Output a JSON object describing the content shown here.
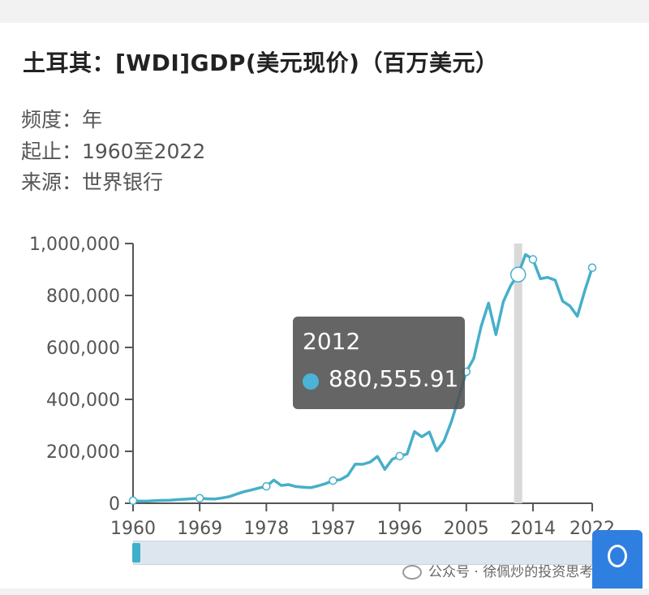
{
  "header": {
    "title": "土耳其：[WDI]GDP(美元现价)（百万美元）",
    "frequency": "频度：年",
    "range": "起止：1960至2022",
    "source": "来源：世界银行"
  },
  "tooltip": {
    "year": "2012",
    "value": "880,555.91"
  },
  "watermark": {
    "label": "公众号 · 徐佩炒的投资思考"
  },
  "colors": {
    "line": "#47afc8",
    "tooltip_dot": "#4bb3d8",
    "highlight_bar": "#d9d9d9",
    "float_button": "#2f7fe0"
  },
  "chart_data": {
    "type": "line",
    "title": "",
    "xlabel": "",
    "ylabel": "",
    "xlim": [
      1960,
      2022
    ],
    "ylim": [
      0,
      1000000
    ],
    "x_ticks": [
      1960,
      1969,
      1978,
      1987,
      1996,
      2005,
      2014,
      2022
    ],
    "y_ticks": [
      0,
      200000,
      400000,
      600000,
      800000,
      1000000
    ],
    "y_tick_labels": [
      "0",
      "200,000",
      "400,000",
      "600,000",
      "800,000",
      "1,000,000"
    ],
    "highlight_x": 2012,
    "marker_years": [
      1960,
      1969,
      1978,
      1987,
      1996,
      2005,
      2012,
      2014,
      2022
    ],
    "series": [
      {
        "x": [
          1960,
          1961,
          1962,
          1963,
          1964,
          1965,
          1966,
          1967,
          1968,
          1969,
          1970,
          1971,
          1972,
          1973,
          1974,
          1975,
          1976,
          1977,
          1978,
          1979,
          1980,
          1981,
          1982,
          1983,
          1984,
          1985,
          1986,
          1987,
          1988,
          1989,
          1990,
          1991,
          1992,
          1993,
          1994,
          1995,
          1996,
          1997,
          1998,
          1999,
          2000,
          2001,
          2002,
          2003,
          2004,
          2005,
          2006,
          2007,
          2008,
          2009,
          2010,
          2011,
          2012,
          2013,
          2014,
          2015,
          2016,
          2017,
          2018,
          2019,
          2020,
          2021,
          2022
        ],
        "values": [
          10000,
          8000,
          8900,
          10300,
          11200,
          12000,
          14100,
          15700,
          17500,
          19500,
          17300,
          16400,
          20400,
          25700,
          35600,
          44600,
          51300,
          58700,
          65100,
          89400,
          68800,
          72000,
          64500,
          61700,
          59900,
          67200,
          75700,
          87200,
          90900,
          107100,
          150700,
          150000,
          158500,
          180200,
          130700,
          169500,
          181500,
          189800,
          275800,
          256400,
          274300,
          201800,
          240300,
          314600,
          408900,
          506300,
          557100,
          681300,
          770500,
          649300,
          776900,
          838800,
          880600,
          957800,
          938900,
          864300,
          869700,
          858900,
          778500,
          759500,
          720100,
          819000,
          907100
        ]
      }
    ]
  }
}
